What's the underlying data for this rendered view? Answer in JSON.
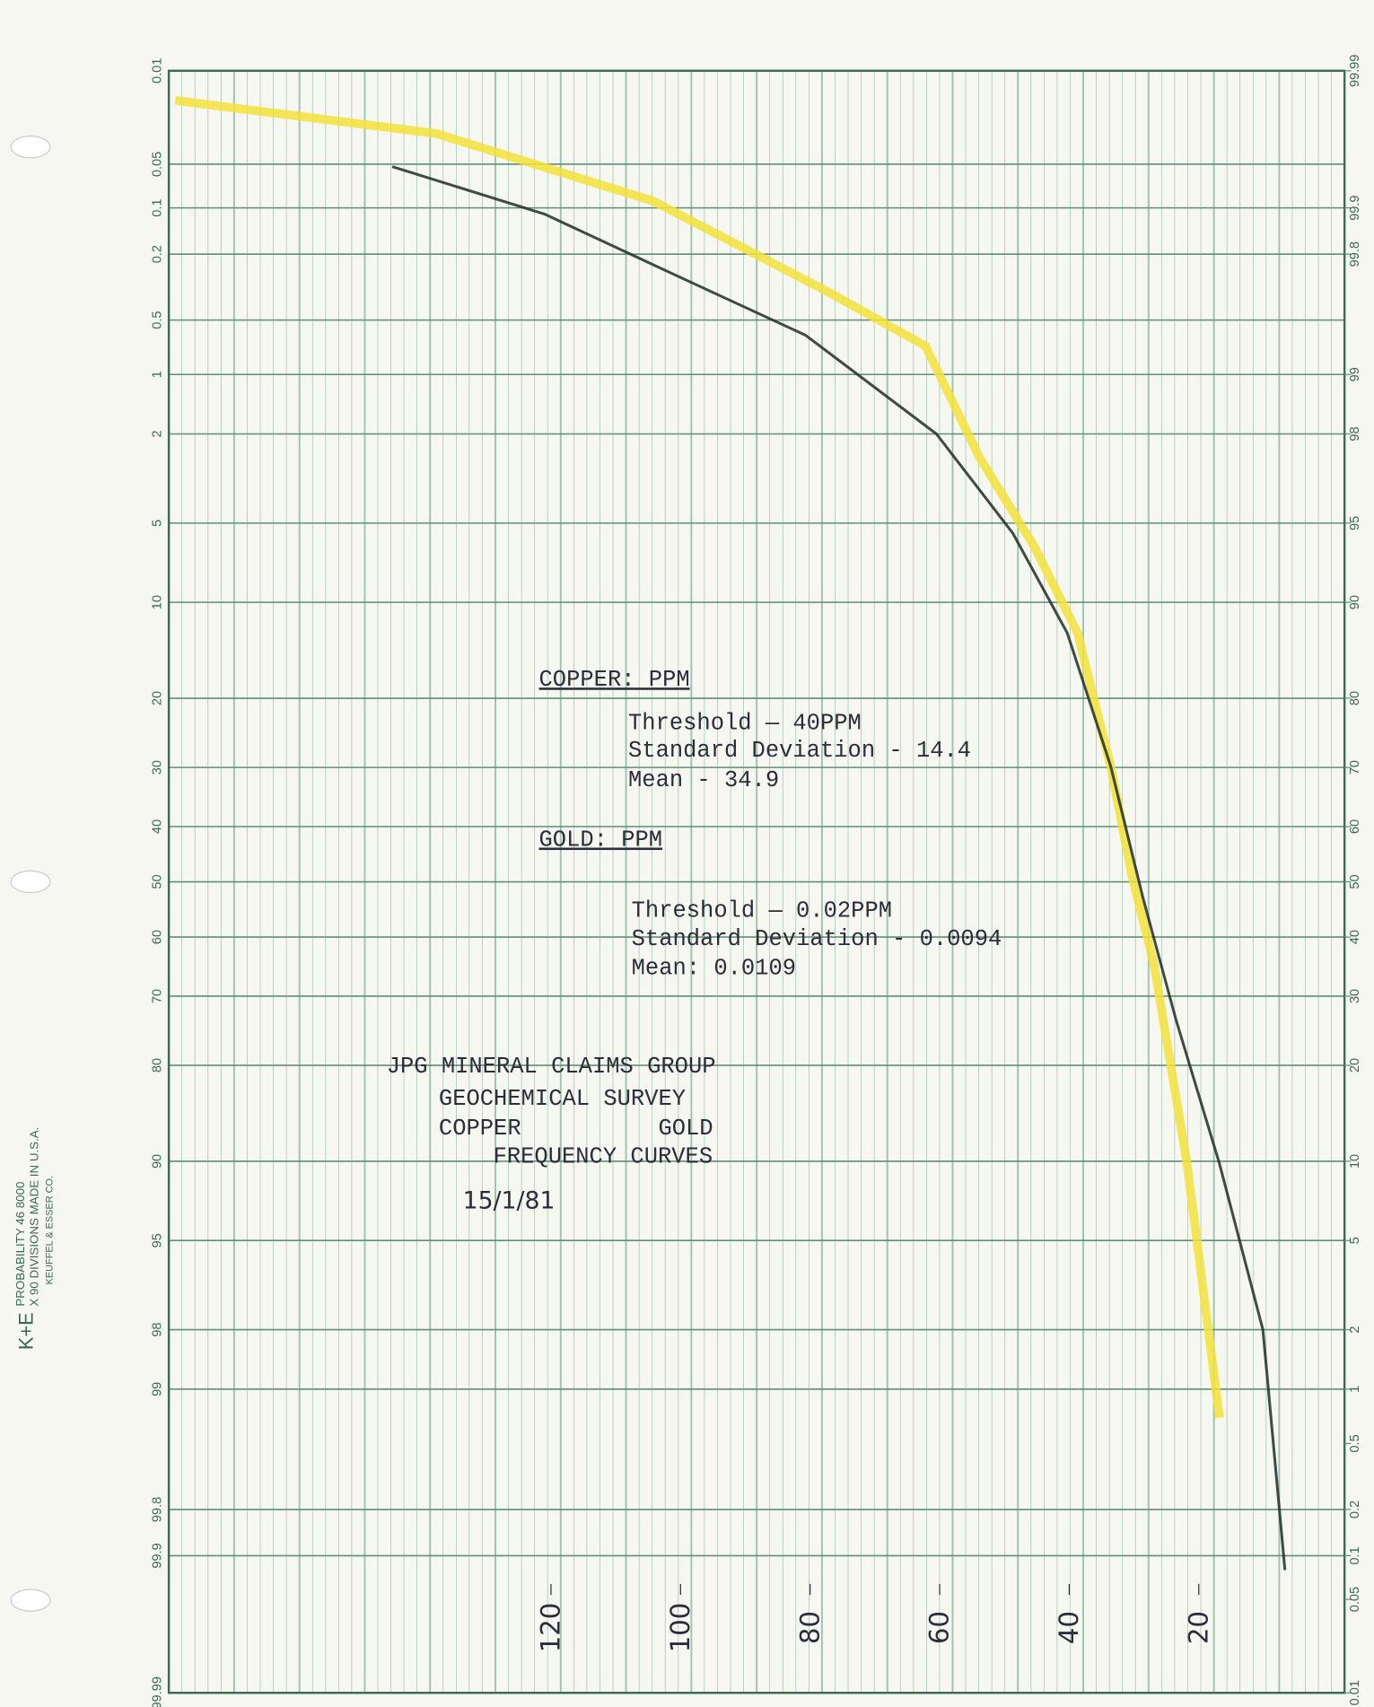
{
  "chart_data": {
    "type": "line",
    "title": [
      "JPG MINERAL CLAIMS GROUP",
      "GEOCHEMICAL SURVEY",
      "COPPER          GOLD",
      "FREQUENCY CURVES"
    ],
    "date": "15/1/81",
    "annotations": [
      "COPPER: PPM",
      "Threshold —  40PPM",
      "Standard Deviation - 14.4",
      "Mean -        34.9",
      "GOLD:  PPM",
      "Threshold —  0.02PPM",
      "Standard Deviation - 0.0094",
      "Mean: 0.0109"
    ],
    "paper_label": [
      "K+E",
      "PROBABILITY   46 8000",
      "X 90 DIVISIONS  MADE IN U.S.A.",
      "KEUFFEL & ESSER CO."
    ],
    "xlim": [
      179,
      -2.5
    ],
    "xticks": [
      120,
      100,
      80,
      60,
      40,
      20
    ],
    "ylim": [
      0.01,
      99.99
    ],
    "yticks": [
      0.01,
      0.05,
      0.1,
      0.2,
      0.5,
      1,
      2,
      5,
      10,
      20,
      30,
      40,
      50,
      60,
      70,
      80,
      90,
      95,
      98,
      99,
      99.8,
      99.9,
      99.99
    ],
    "y2ticks": [
      99.99,
      99.9,
      99.8,
      99,
      98,
      95,
      90,
      80,
      70,
      60,
      50,
      40,
      30,
      20,
      10,
      5,
      2,
      1,
      0.5,
      0.2,
      0.1,
      0.05,
      0.01
    ],
    "series": [
      {
        "color": "#f2e23a",
        "x": [
          178,
          137.8,
          104.2,
          77.3,
          62.2,
          53.8,
          45.4,
          38.7,
          33.6,
          30.3,
          26.9,
          21.8,
          16.8
        ],
        "values": [
          0.017,
          0.03,
          0.09,
          0.34,
          0.7,
          2.6,
          6.2,
          12.7,
          29.8,
          49,
          64.8,
          90.2,
          99.3
        ]
      },
      {
        "color": "#1f2e26",
        "x": [
          144.5,
          121,
          100.8,
          80.7,
          60.5,
          48.7,
          40.3,
          33.6,
          28.6,
          23.5,
          16.8,
          10.1,
          6.7
        ],
        "values": [
          0.052,
          0.11,
          0.27,
          0.61,
          2.0,
          5.5,
          12.7,
          29.8,
          53,
          73.7,
          90.2,
          98.0,
          99.92
        ]
      }
    ]
  }
}
